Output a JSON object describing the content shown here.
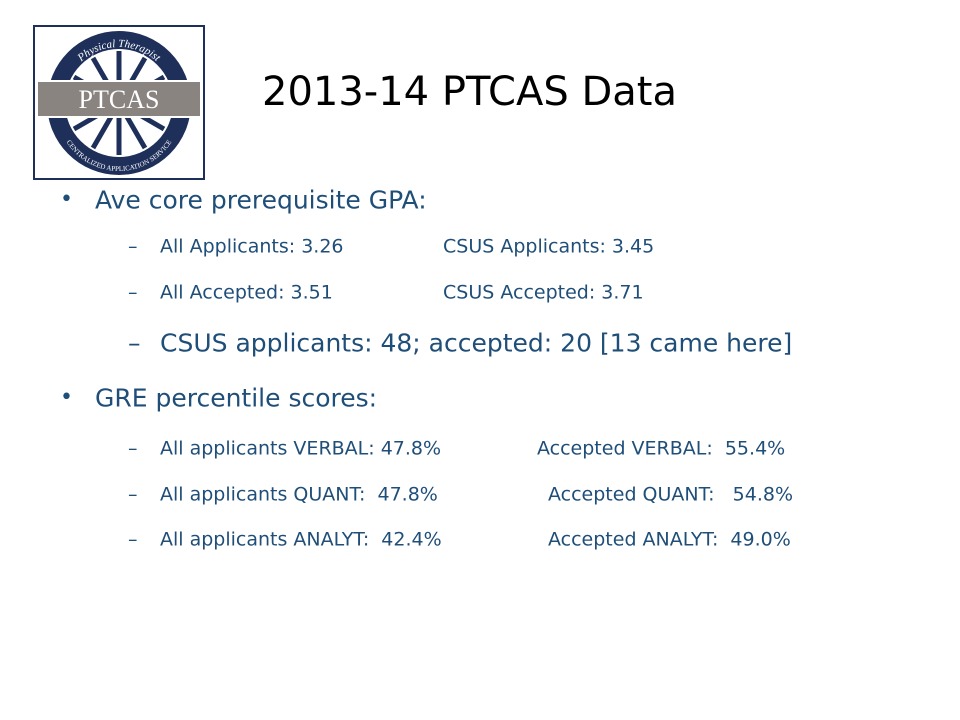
{
  "title": "2013-14 PTCAS Data",
  "logo": {
    "top": "Physical Therapist",
    "center": "PTCAS",
    "bottom": "CENTRALIZED APPLICATION SERVICE"
  },
  "bullets": [
    {
      "text": "Ave core prerequisite GPA:",
      "items": [
        {
          "left": "All Applicants: 3.26",
          "right": "CSUS Applicants: 3.45"
        },
        {
          "left": "All Accepted: 3.51",
          "right": "CSUS Accepted: 3.71"
        },
        {
          "text": "CSUS applicants: 48; accepted: 20 [13 came here]"
        }
      ]
    },
    {
      "text": "GRE percentile scores:",
      "items": [
        {
          "left": "All applicants VERBAL: 47.8%",
          "right": "Accepted VERBAL:  55.4%"
        },
        {
          "left": "All applicants QUANT:  47.8%",
          "right": "Accepted QUANT:   54.8%"
        },
        {
          "left": "All applicants ANALYT:  42.4%",
          "right": "Accepted ANALYT:  49.0%"
        }
      ]
    }
  ]
}
